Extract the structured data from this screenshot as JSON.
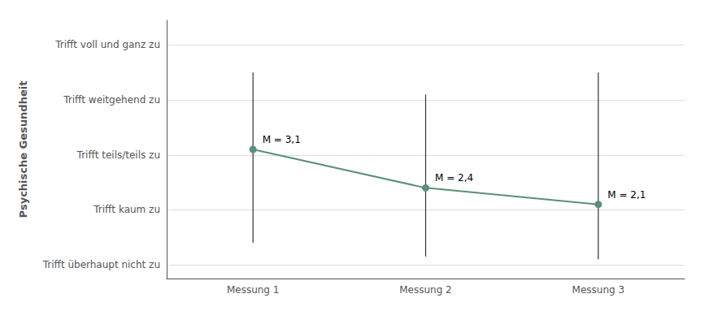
{
  "chart_data": {
    "type": "line",
    "categories": [
      "Messung 1",
      "Messung 2",
      "Messung 3"
    ],
    "values": [
      3.1,
      2.4,
      2.1
    ],
    "value_labels": [
      "M = 3,1",
      "M = 2,4",
      "M = 2,1"
    ],
    "data_labels": true,
    "error_low": [
      1.4,
      1.15,
      1.1
    ],
    "error_high": [
      4.5,
      4.1,
      4.5
    ],
    "color": "#5a9078",
    "marker": "circle",
    "y_label": "Psychische Gesundheit",
    "ylim": [
      0.75,
      5.45
    ],
    "yticks": [
      {
        "value": 1,
        "label": "Trifft überhaupt nicht zu"
      },
      {
        "value": 2,
        "label": "Trifft kaum zu"
      },
      {
        "value": 3,
        "label": "Trifft teils/teils zu"
      },
      {
        "value": 4,
        "label": "Trifft weitgehend zu"
      },
      {
        "value": 5,
        "label": "Trifft voll und ganz zu"
      }
    ],
    "grid": true
  }
}
